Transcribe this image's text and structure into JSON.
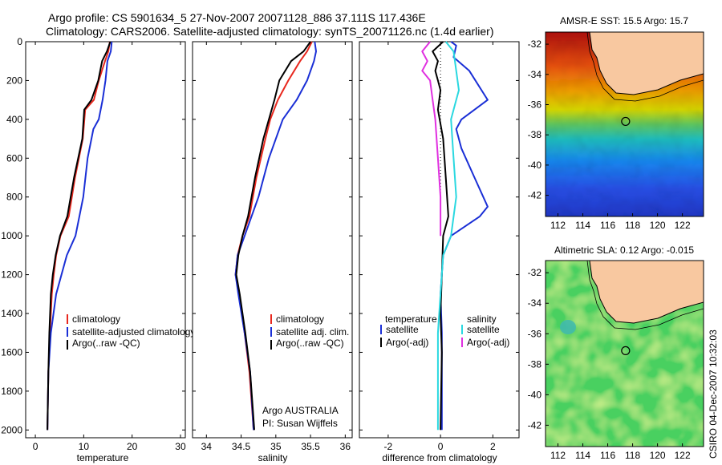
{
  "header": {
    "line1": "Argo profile: CS 5901634_5 27-Nov-2007 20071128_886 37.111S 117.436E",
    "line2": "Climatology: CARS2006. Satellite-adjusted climatology: synTS_20071126.nc (1.4d earlier)"
  },
  "colors": {
    "climatology": "#e8281e",
    "satellite": "#1a2fd6",
    "argo": "#000000",
    "satellite_salinity": "#2ad8e0",
    "argo_adj_salinity": "#e030e0",
    "land": "#f8c8a0"
  },
  "chart_data": [
    {
      "type": "line",
      "name": "temperature-profile",
      "xlabel": "temperature",
      "xlim": [
        -2,
        31
      ],
      "ylim": [
        2040,
        0
      ],
      "xticks": [
        "0",
        "10",
        "20",
        "30"
      ],
      "xtick_values": [
        0,
        10,
        20,
        30
      ],
      "yticks": [
        "0",
        "200",
        "400",
        "600",
        "800",
        "1000",
        "1200",
        "1400",
        "1600",
        "1800",
        "2000"
      ],
      "legend": [
        "climatology",
        "satellite-adjusted climatology",
        "Argo(..raw -QC)"
      ],
      "series": [
        {
          "key": "climatology",
          "points": [
            [
              15.4,
              0
            ],
            [
              15.1,
              50
            ],
            [
              14.4,
              100
            ],
            [
              13.1,
              200
            ],
            [
              12.1,
              300
            ],
            [
              10.3,
              350
            ],
            [
              9.8,
              500
            ],
            [
              8.2,
              700
            ],
            [
              6.9,
              900
            ],
            [
              5.2,
              1000
            ],
            [
              4.3,
              1100
            ],
            [
              3.8,
              1200
            ],
            [
              3.4,
              1300
            ],
            [
              3.0,
              1500
            ],
            [
              2.7,
              1700
            ],
            [
              2.5,
              2000
            ]
          ]
        },
        {
          "key": "satellite",
          "points": [
            [
              15.8,
              0
            ],
            [
              15.6,
              50
            ],
            [
              14.9,
              100
            ],
            [
              14.5,
              200
            ],
            [
              13.9,
              300
            ],
            [
              13.1,
              400
            ],
            [
              12.0,
              450
            ],
            [
              10.8,
              600
            ],
            [
              9.9,
              800
            ],
            [
              8.3,
              1000
            ],
            [
              6.5,
              1100
            ],
            [
              4.3,
              1300
            ],
            [
              3.2,
              1500
            ],
            [
              2.7,
              1700
            ],
            [
              2.5,
              2000
            ]
          ]
        },
        {
          "key": "argo",
          "points": [
            [
              15.5,
              0
            ],
            [
              14.8,
              50
            ],
            [
              13.8,
              100
            ],
            [
              13.0,
              200
            ],
            [
              11.6,
              300
            ],
            [
              10.1,
              350
            ],
            [
              9.7,
              500
            ],
            [
              8.0,
              700
            ],
            [
              6.6,
              900
            ],
            [
              5.1,
              1000
            ],
            [
              4.2,
              1100
            ],
            [
              3.6,
              1200
            ],
            [
              3.2,
              1300
            ],
            [
              2.9,
              1500
            ],
            [
              2.7,
              1700
            ],
            [
              2.5,
              2000
            ]
          ]
        }
      ]
    },
    {
      "type": "line",
      "name": "salinity-profile",
      "xlabel": "salinity",
      "xlim": [
        33.8,
        36.1
      ],
      "ylim": [
        2040,
        0
      ],
      "xticks": [
        "34",
        "34.5",
        "35",
        "35.5",
        "36"
      ],
      "xtick_values": [
        34,
        34.5,
        35,
        35.5,
        36
      ],
      "legend": [
        "climatology",
        "satellite adj. clim.",
        "Argo(..raw -QC)"
      ],
      "annotations": [
        "Argo AUSTRALIA",
        "PI: Susan Wijffels"
      ],
      "series": [
        {
          "key": "climatology",
          "points": [
            [
              35.52,
              0
            ],
            [
              35.45,
              50
            ],
            [
              35.35,
              100
            ],
            [
              35.18,
              200
            ],
            [
              35.03,
              300
            ],
            [
              34.92,
              400
            ],
            [
              34.85,
              500
            ],
            [
              34.72,
              700
            ],
            [
              34.62,
              900
            ],
            [
              34.52,
              1000
            ],
            [
              34.45,
              1100
            ],
            [
              34.42,
              1200
            ],
            [
              34.47,
              1300
            ],
            [
              34.55,
              1500
            ],
            [
              34.62,
              1700
            ],
            [
              34.68,
              2000
            ]
          ]
        },
        {
          "key": "satellite",
          "points": [
            [
              35.56,
              0
            ],
            [
              35.58,
              50
            ],
            [
              35.55,
              100
            ],
            [
              35.45,
              200
            ],
            [
              35.3,
              300
            ],
            [
              35.1,
              400
            ],
            [
              34.9,
              600
            ],
            [
              34.75,
              800
            ],
            [
              34.55,
              1000
            ],
            [
              34.45,
              1100
            ],
            [
              34.42,
              1200
            ],
            [
              34.46,
              1300
            ],
            [
              34.55,
              1500
            ],
            [
              34.63,
              1700
            ],
            [
              34.68,
              2000
            ]
          ]
        },
        {
          "key": "argo",
          "points": [
            [
              35.5,
              0
            ],
            [
              35.4,
              50
            ],
            [
              35.22,
              100
            ],
            [
              35.05,
              200
            ],
            [
              34.98,
              300
            ],
            [
              34.9,
              400
            ],
            [
              34.82,
              500
            ],
            [
              34.7,
              700
            ],
            [
              34.6,
              900
            ],
            [
              34.52,
              1000
            ],
            [
              34.46,
              1100
            ],
            [
              34.43,
              1200
            ],
            [
              34.48,
              1300
            ],
            [
              34.56,
              1500
            ],
            [
              34.63,
              1700
            ],
            [
              34.69,
              2000
            ]
          ]
        }
      ]
    },
    {
      "type": "line",
      "name": "difference-profile",
      "xlabel": "difference from climatology",
      "xlim": [
        -3.1,
        3.0
      ],
      "ylim": [
        2040,
        0
      ],
      "xticks": [
        "-2",
        "0",
        "2"
      ],
      "xtick_values": [
        -2,
        0,
        2
      ],
      "legend_left_title": "temperature",
      "legend_right_title": "salinity",
      "legend_left": [
        "satellite",
        "Argo(-adj)"
      ],
      "legend_right": [
        "satellite",
        "Argo(-adj)"
      ],
      "series": [
        {
          "key": "satellite",
          "points": [
            [
              0.4,
              0
            ],
            [
              0.6,
              20
            ],
            [
              0.5,
              80
            ],
            [
              1.1,
              150
            ],
            [
              1.8,
              300
            ],
            [
              0.8,
              400
            ],
            [
              0.6,
              450
            ],
            [
              0.8,
              550
            ],
            [
              1.3,
              700
            ],
            [
              1.8,
              850
            ],
            [
              1.5,
              900
            ],
            [
              0.4,
              1000
            ],
            [
              0.1,
              1100
            ],
            [
              0.0,
              1300
            ],
            [
              0.05,
              1500
            ],
            [
              0.05,
              2000
            ]
          ]
        },
        {
          "key": "argo",
          "points": [
            [
              0.1,
              0
            ],
            [
              -0.3,
              50
            ],
            [
              -0.1,
              100
            ],
            [
              -0.2,
              150
            ],
            [
              -0.1,
              200
            ],
            [
              0.0,
              250
            ],
            [
              -0.1,
              350
            ],
            [
              0.1,
              500
            ],
            [
              0.2,
              700
            ],
            [
              0.3,
              900
            ],
            [
              0.1,
              1000
            ],
            [
              0.05,
              1200
            ],
            [
              0.0,
              1400
            ],
            [
              0.05,
              1600
            ],
            [
              0.0,
              2000
            ]
          ]
        },
        {
          "key": "satellite_salinity",
          "points": [
            [
              0.2,
              0
            ],
            [
              0.5,
              50
            ],
            [
              0.6,
              150
            ],
            [
              0.7,
              250
            ],
            [
              0.6,
              300
            ],
            [
              0.4,
              400
            ],
            [
              0.5,
              600
            ],
            [
              0.6,
              800
            ],
            [
              0.4,
              1000
            ],
            [
              0.1,
              1100
            ],
            [
              0.0,
              1300
            ],
            [
              -0.1,
              1500
            ],
            [
              -0.1,
              2000
            ]
          ]
        },
        {
          "key": "argo_adj_salinity",
          "points": [
            [
              -0.4,
              0
            ],
            [
              -0.7,
              50
            ],
            [
              -0.5,
              100
            ],
            [
              -0.7,
              150
            ],
            [
              -0.4,
              200
            ],
            [
              -0.3,
              300
            ],
            [
              -0.2,
              400
            ],
            [
              -0.1,
              600
            ],
            [
              0.0,
              800
            ],
            [
              0.0,
              1000
            ]
          ]
        }
      ]
    },
    {
      "type": "heatmap",
      "name": "sst-map",
      "title": "AMSR-E SST: 15.5  Argo: 15.7",
      "xlim": [
        111,
        123.7
      ],
      "ylim": [
        -43.4,
        -31.2
      ],
      "xticks": [
        "112",
        "114",
        "116",
        "118",
        "120",
        "122"
      ],
      "xtick_values": [
        112,
        114,
        116,
        118,
        120,
        122
      ],
      "yticks": [
        "-32",
        "-34",
        "-36",
        "-38",
        "-40",
        "-42"
      ],
      "ytick_values": [
        -32,
        -34,
        -36,
        -38,
        -40,
        -42
      ],
      "marker": [
        117.436,
        -37.111
      ]
    },
    {
      "type": "heatmap",
      "name": "sla-map",
      "title": "Altimetric SLA: 0.12  Argo: -0.015",
      "xlim": [
        111,
        123.7
      ],
      "ylim": [
        -43.4,
        -31.2
      ],
      "xticks": [
        "112",
        "114",
        "116",
        "118",
        "120",
        "122"
      ],
      "xtick_values": [
        112,
        114,
        116,
        118,
        120,
        122
      ],
      "yticks": [
        "-32",
        "-34",
        "-36",
        "-38",
        "-40",
        "-42"
      ],
      "ytick_values": [
        -32,
        -34,
        -36,
        -38,
        -40,
        -42
      ],
      "marker": [
        117.436,
        -37.111
      ]
    }
  ],
  "footer": {
    "stamp": "CSIRO 04-Dec-2007 10:32:03"
  }
}
